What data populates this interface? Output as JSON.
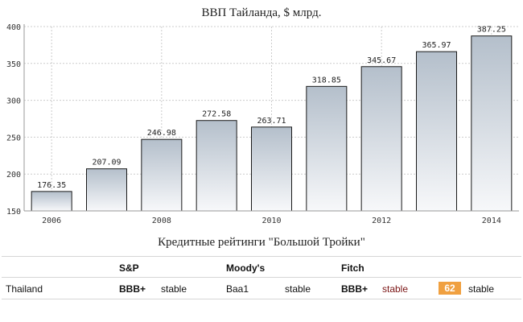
{
  "chart_data": {
    "type": "bar",
    "title": "ВВП Тайланда, $ млрд.",
    "categories": [
      "2006",
      "2007",
      "2008",
      "2009",
      "2010",
      "2011",
      "2012",
      "2013",
      "2014"
    ],
    "values": [
      176.35,
      207.09,
      246.98,
      272.58,
      263.71,
      318.85,
      345.67,
      365.97,
      387.25
    ],
    "data_labels": [
      "176.35",
      "207.09",
      "246.98",
      "272.58",
      "263.71",
      "318.85",
      "345.67",
      "365.97",
      "387.25"
    ],
    "x_tick_labels": [
      "2006",
      "2008",
      "2010",
      "2012",
      "2014"
    ],
    "y_ticks": [
      150,
      200,
      250,
      300,
      350,
      400
    ],
    "ylim": [
      150,
      400
    ],
    "grid": true,
    "xlabel": "",
    "ylabel": "",
    "colors": {
      "bar_top": "#b4bfcb",
      "bar_bottom": "#f7f8fa",
      "bar_stroke": "#1a1a1a",
      "grid": "#cccccc",
      "axis": "#999999"
    }
  },
  "ratings": {
    "title": "Кредитные рейтинги \"Большой Тройки\"",
    "headers": {
      "sp": "S&P",
      "moodys": "Moody's",
      "fitch": "Fitch"
    },
    "country": "Thailand",
    "sp": {
      "rating": "BBB+",
      "outlook": "stable"
    },
    "moodys": {
      "rating": "Baa1",
      "outlook": "stable"
    },
    "fitch": {
      "rating": "BBB+",
      "outlook": "stable"
    },
    "score": "62",
    "score_outlook": "stable",
    "colors": {
      "badge": "#f0a040",
      "fitch_outlook": "#7a1414"
    }
  }
}
